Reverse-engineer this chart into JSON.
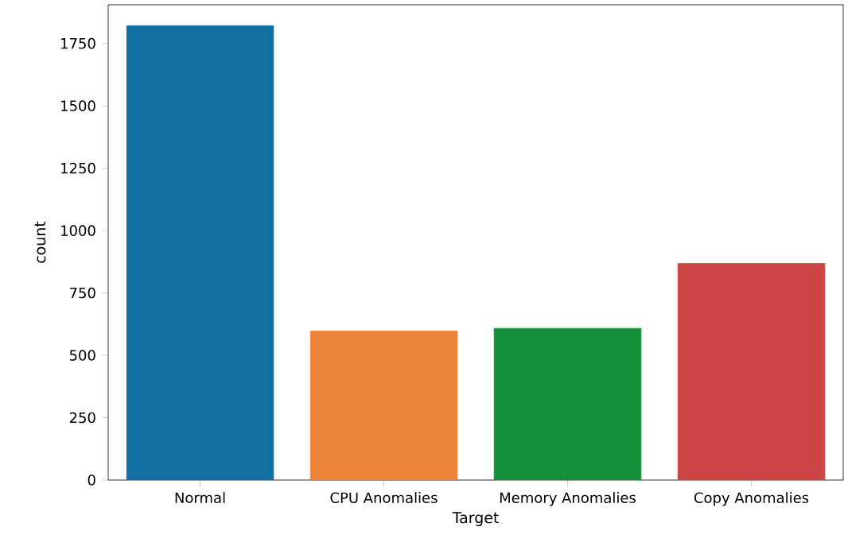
{
  "chart_data": {
    "type": "bar",
    "xlabel": "Target",
    "ylabel": "count",
    "categories": [
      "Normal",
      "CPU Anomalies",
      "Memory Anomalies",
      "Copy Anomalies"
    ],
    "values": [
      1821,
      597,
      608,
      868
    ],
    "colors": [
      "#1170a0",
      "#ec843a",
      "#168f3a",
      "#cc4444"
    ],
    "ylim": [
      0,
      1905
    ],
    "yticks": [
      0,
      250,
      500,
      750,
      1000,
      1250,
      1500,
      1750
    ],
    "grid": false
  }
}
